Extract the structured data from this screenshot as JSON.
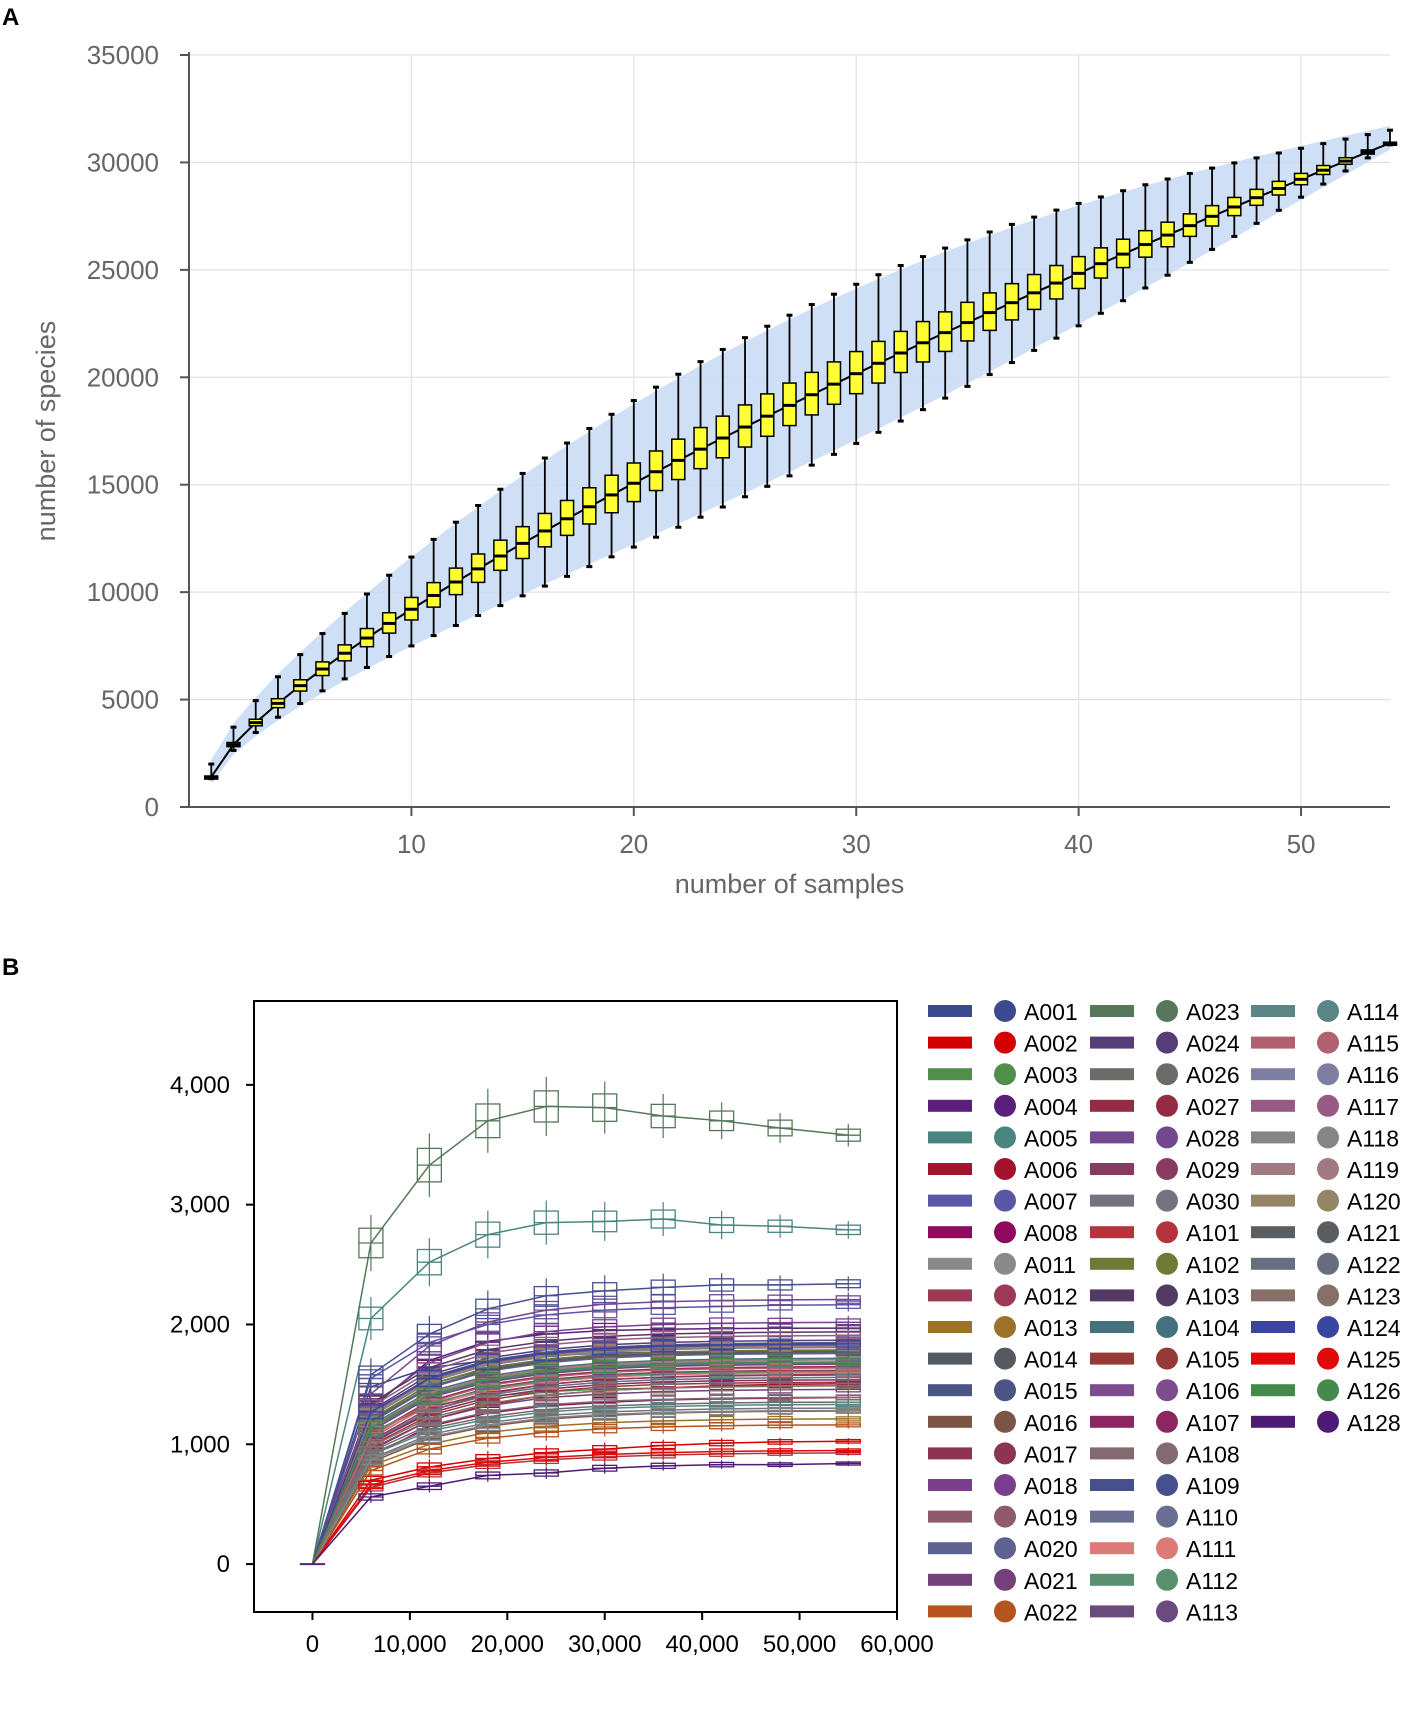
{
  "chart_data": [
    {
      "panel": "A",
      "type": "box",
      "xlabel": "number of samples",
      "ylabel": "number of species",
      "xlim": [
        0,
        54
      ],
      "ylim": [
        0,
        35000
      ],
      "xticks": [
        10,
        20,
        30,
        40,
        50
      ],
      "yticks": [
        0,
        5000,
        10000,
        15000,
        20000,
        25000,
        30000,
        35000
      ],
      "grid": true,
      "box_color": "#ffff33",
      "band_color": "#c6d9f4",
      "median_curve": {
        "n_max": 54,
        "start_value": 1400,
        "end_value": 30900,
        "shape_exponent": 0.75
      },
      "note": "One box per sample count n = 1..54; median follows the accumulation curve, box and whisker widths widen to the middle and narrow toward n = 54"
    },
    {
      "panel": "B",
      "type": "box",
      "xlim": [
        -6000,
        60000
      ],
      "ylim": [
        -400,
        4700
      ],
      "xticks": [
        "0",
        "10,000",
        "20,000",
        "30,000",
        "40,000",
        "50,000",
        "60,000"
      ],
      "xtick_values": [
        0,
        10000,
        20000,
        30000,
        40000,
        50000,
        60000
      ],
      "yticks": [
        "0",
        "1,000",
        "2,000",
        "3,000",
        "4,000"
      ],
      "ytick_values": [
        0,
        1000,
        2000,
        3000,
        4000
      ],
      "depths": [
        0,
        6000,
        12000,
        18000,
        24000,
        30000,
        36000,
        42000,
        48000,
        55000
      ],
      "series": [
        {
          "name": "A001",
          "color": "#3b4a8f",
          "values": [
            0,
            1480,
            1640,
            1700,
            1740,
            1760,
            1770,
            1775,
            1780,
            1782
          ]
        },
        {
          "name": "A002",
          "color": "#d40000",
          "values": [
            0,
            700,
            810,
            880,
            930,
            960,
            990,
            1010,
            1020,
            1025
          ]
        },
        {
          "name": "A003",
          "color": "#4f8f4a",
          "values": [
            0,
            1100,
            1320,
            1400,
            1440,
            1460,
            1470,
            1480,
            1485,
            1488
          ]
        },
        {
          "name": "A004",
          "color": "#5a1f7a",
          "values": [
            0,
            1300,
            1700,
            1860,
            1920,
            1950,
            1960,
            1965,
            1968,
            1970
          ]
        },
        {
          "name": "A005",
          "color": "#4a8580",
          "values": [
            0,
            2050,
            2520,
            2750,
            2850,
            2860,
            2880,
            2830,
            2820,
            2790
          ]
        },
        {
          "name": "A006",
          "color": "#a3132e",
          "values": [
            0,
            950,
            1200,
            1330,
            1410,
            1450,
            1470,
            1490,
            1500,
            1505
          ]
        },
        {
          "name": "A007",
          "color": "#5b57a8",
          "values": [
            0,
            1550,
            1850,
            2000,
            2080,
            2120,
            2140,
            2150,
            2160,
            2165
          ]
        },
        {
          "name": "A008",
          "color": "#8e0a5e",
          "values": [
            0,
            900,
            1150,
            1260,
            1320,
            1350,
            1370,
            1380,
            1385,
            1390
          ]
        },
        {
          "name": "A011",
          "color": "#8a8a8a",
          "values": [
            0,
            1150,
            1420,
            1550,
            1620,
            1660,
            1680,
            1690,
            1700,
            1705
          ]
        },
        {
          "name": "A012",
          "color": "#9c3a55",
          "values": [
            0,
            1000,
            1280,
            1420,
            1500,
            1540,
            1560,
            1575,
            1580,
            1585
          ]
        },
        {
          "name": "A013",
          "color": "#9a7328",
          "values": [
            0,
            820,
            1000,
            1100,
            1150,
            1180,
            1195,
            1205,
            1210,
            1212
          ]
        },
        {
          "name": "A014",
          "color": "#555a60",
          "values": [
            0,
            1200,
            1500,
            1630,
            1700,
            1740,
            1760,
            1770,
            1775,
            1778
          ]
        },
        {
          "name": "A015",
          "color": "#4a5585",
          "values": [
            0,
            1250,
            1560,
            1700,
            1770,
            1810,
            1830,
            1840,
            1845,
            1848
          ]
        },
        {
          "name": "A016",
          "color": "#7d5545",
          "values": [
            0,
            850,
            1050,
            1150,
            1210,
            1240,
            1260,
            1270,
            1275,
            1278
          ]
        },
        {
          "name": "A017",
          "color": "#8c3450",
          "values": [
            0,
            1050,
            1330,
            1470,
            1540,
            1580,
            1600,
            1610,
            1615,
            1618
          ]
        },
        {
          "name": "A018",
          "color": "#7a3f8c",
          "values": [
            0,
            1320,
            1680,
            1850,
            1940,
            1980,
            2000,
            2010,
            2015,
            2018
          ]
        },
        {
          "name": "A019",
          "color": "#8f5a6e",
          "values": [
            0,
            1120,
            1400,
            1530,
            1600,
            1640,
            1660,
            1670,
            1675,
            1678
          ]
        },
        {
          "name": "A020",
          "color": "#5e6290",
          "values": [
            0,
            1180,
            1470,
            1610,
            1680,
            1720,
            1740,
            1750,
            1755,
            1758
          ]
        },
        {
          "name": "A021",
          "color": "#73407a",
          "values": [
            0,
            960,
            1200,
            1320,
            1390,
            1420,
            1440,
            1450,
            1455,
            1458
          ]
        },
        {
          "name": "A022",
          "color": "#b5541f",
          "values": [
            0,
            780,
            960,
            1050,
            1100,
            1130,
            1145,
            1155,
            1160,
            1162
          ]
        },
        {
          "name": "A023",
          "color": "#56775a",
          "values": [
            0,
            2680,
            3330,
            3700,
            3820,
            3810,
            3740,
            3700,
            3640,
            3580
          ]
        },
        {
          "name": "A024",
          "color": "#553d78",
          "values": [
            0,
            1280,
            1580,
            1720,
            1790,
            1830,
            1850,
            1860,
            1865,
            1868
          ]
        },
        {
          "name": "A026",
          "color": "#6a6c68",
          "values": [
            0,
            920,
            1130,
            1230,
            1290,
            1320,
            1335,
            1345,
            1350,
            1352
          ]
        },
        {
          "name": "A027",
          "color": "#952a45",
          "values": [
            0,
            1080,
            1360,
            1500,
            1570,
            1610,
            1630,
            1640,
            1645,
            1648
          ]
        },
        {
          "name": "A028",
          "color": "#72488f",
          "values": [
            0,
            1420,
            1820,
            2020,
            2120,
            2170,
            2190,
            2200,
            2205,
            2208
          ]
        },
        {
          "name": "A029",
          "color": "#8a3a60",
          "values": [
            0,
            1030,
            1300,
            1430,
            1500,
            1540,
            1560,
            1570,
            1575,
            1578
          ]
        },
        {
          "name": "A030",
          "color": "#72737f",
          "values": [
            0,
            880,
            1080,
            1180,
            1240,
            1270,
            1285,
            1295,
            1300,
            1302
          ]
        },
        {
          "name": "A101",
          "color": "#b5333a",
          "values": [
            0,
            640,
            760,
            830,
            870,
            895,
            910,
            920,
            925,
            928
          ]
        },
        {
          "name": "A102",
          "color": "#6c7b35",
          "values": [
            0,
            1210,
            1500,
            1640,
            1710,
            1750,
            1770,
            1780,
            1785,
            1788
          ]
        },
        {
          "name": "A103",
          "color": "#523a65",
          "values": [
            0,
            1340,
            1640,
            1790,
            1860,
            1900,
            1920,
            1930,
            1935,
            1938
          ]
        },
        {
          "name": "A104",
          "color": "#45707d",
          "values": [
            0,
            1160,
            1440,
            1570,
            1640,
            1680,
            1700,
            1710,
            1715,
            1718
          ]
        },
        {
          "name": "A105",
          "color": "#963a35",
          "values": [
            0,
            990,
            1240,
            1370,
            1440,
            1480,
            1500,
            1510,
            1515,
            1518
          ]
        },
        {
          "name": "A106",
          "color": "#7c4c8c",
          "values": [
            0,
            1260,
            1540,
            1680,
            1750,
            1790,
            1810,
            1820,
            1825,
            1828
          ]
        },
        {
          "name": "A107",
          "color": "#8c2660",
          "values": [
            0,
            1010,
            1260,
            1390,
            1460,
            1500,
            1520,
            1530,
            1535,
            1538
          ]
        },
        {
          "name": "A108",
          "color": "#836a6e",
          "values": [
            0,
            940,
            1160,
            1270,
            1330,
            1360,
            1375,
            1385,
            1390,
            1392
          ]
        },
        {
          "name": "A109",
          "color": "#46508f",
          "values": [
            0,
            1580,
            1920,
            2130,
            2240,
            2280,
            2310,
            2330,
            2330,
            2340
          ]
        },
        {
          "name": "A110",
          "color": "#6a6e92",
          "values": [
            0,
            1130,
            1400,
            1530,
            1600,
            1640,
            1660,
            1670,
            1675,
            1678
          ]
        },
        {
          "name": "A111",
          "color": "#dc7a78",
          "values": [
            0,
            1060,
            1320,
            1450,
            1520,
            1560,
            1580,
            1590,
            1595,
            1598
          ]
        },
        {
          "name": "A112",
          "color": "#5a9070",
          "values": [
            0,
            1090,
            1340,
            1460,
            1530,
            1570,
            1590,
            1600,
            1605,
            1608
          ]
        },
        {
          "name": "A113",
          "color": "#6b4a7e",
          "values": [
            0,
            1110,
            1390,
            1520,
            1590,
            1630,
            1650,
            1660,
            1665,
            1668
          ]
        },
        {
          "name": "A114",
          "color": "#5a8585",
          "values": [
            0,
            910,
            1110,
            1210,
            1270,
            1300,
            1315,
            1325,
            1330,
            1332
          ]
        },
        {
          "name": "A115",
          "color": "#b0606e",
          "values": [
            0,
            1070,
            1350,
            1490,
            1560,
            1600,
            1620,
            1630,
            1635,
            1638
          ]
        },
        {
          "name": "A116",
          "color": "#7e7ea3",
          "values": [
            0,
            1230,
            1520,
            1660,
            1730,
            1770,
            1790,
            1800,
            1805,
            1808
          ]
        },
        {
          "name": "A117",
          "color": "#965a85",
          "values": [
            0,
            1310,
            1610,
            1760,
            1830,
            1870,
            1890,
            1900,
            1905,
            1908
          ]
        },
        {
          "name": "A118",
          "color": "#858585",
          "values": [
            0,
            870,
            1060,
            1160,
            1220,
            1250,
            1265,
            1275,
            1280,
            1282
          ]
        },
        {
          "name": "A119",
          "color": "#a07a80",
          "values": [
            0,
            1150,
            1430,
            1560,
            1630,
            1670,
            1690,
            1700,
            1705,
            1708
          ]
        },
        {
          "name": "A120",
          "color": "#958466",
          "values": [
            0,
            1240,
            1530,
            1670,
            1740,
            1780,
            1800,
            1810,
            1815,
            1818
          ]
        },
        {
          "name": "A121",
          "color": "#5a5d62",
          "values": [
            0,
            1190,
            1480,
            1620,
            1690,
            1730,
            1750,
            1760,
            1765,
            1768
          ]
        },
        {
          "name": "A122",
          "color": "#686d80",
          "values": [
            0,
            1020,
            1280,
            1410,
            1480,
            1520,
            1540,
            1550,
            1555,
            1558
          ]
        },
        {
          "name": "A123",
          "color": "#877068",
          "values": [
            0,
            980,
            1220,
            1340,
            1410,
            1450,
            1470,
            1480,
            1485,
            1488
          ]
        },
        {
          "name": "A124",
          "color": "#3a45a0",
          "values": [
            0,
            1270,
            1550,
            1690,
            1760,
            1800,
            1820,
            1830,
            1835,
            1838
          ]
        },
        {
          "name": "A125",
          "color": "#e00808",
          "values": [
            0,
            660,
            780,
            850,
            890,
            915,
            930,
            940,
            945,
            948
          ]
        },
        {
          "name": "A126",
          "color": "#448a4a",
          "values": [
            0,
            1140,
            1410,
            1540,
            1610,
            1650,
            1670,
            1680,
            1685,
            1688
          ]
        },
        {
          "name": "A128",
          "color": "#4d1a75",
          "values": [
            0,
            560,
            650,
            740,
            760,
            800,
            820,
            830,
            830,
            840
          ]
        }
      ]
    }
  ],
  "panels": {
    "a": "A",
    "b": "B"
  }
}
